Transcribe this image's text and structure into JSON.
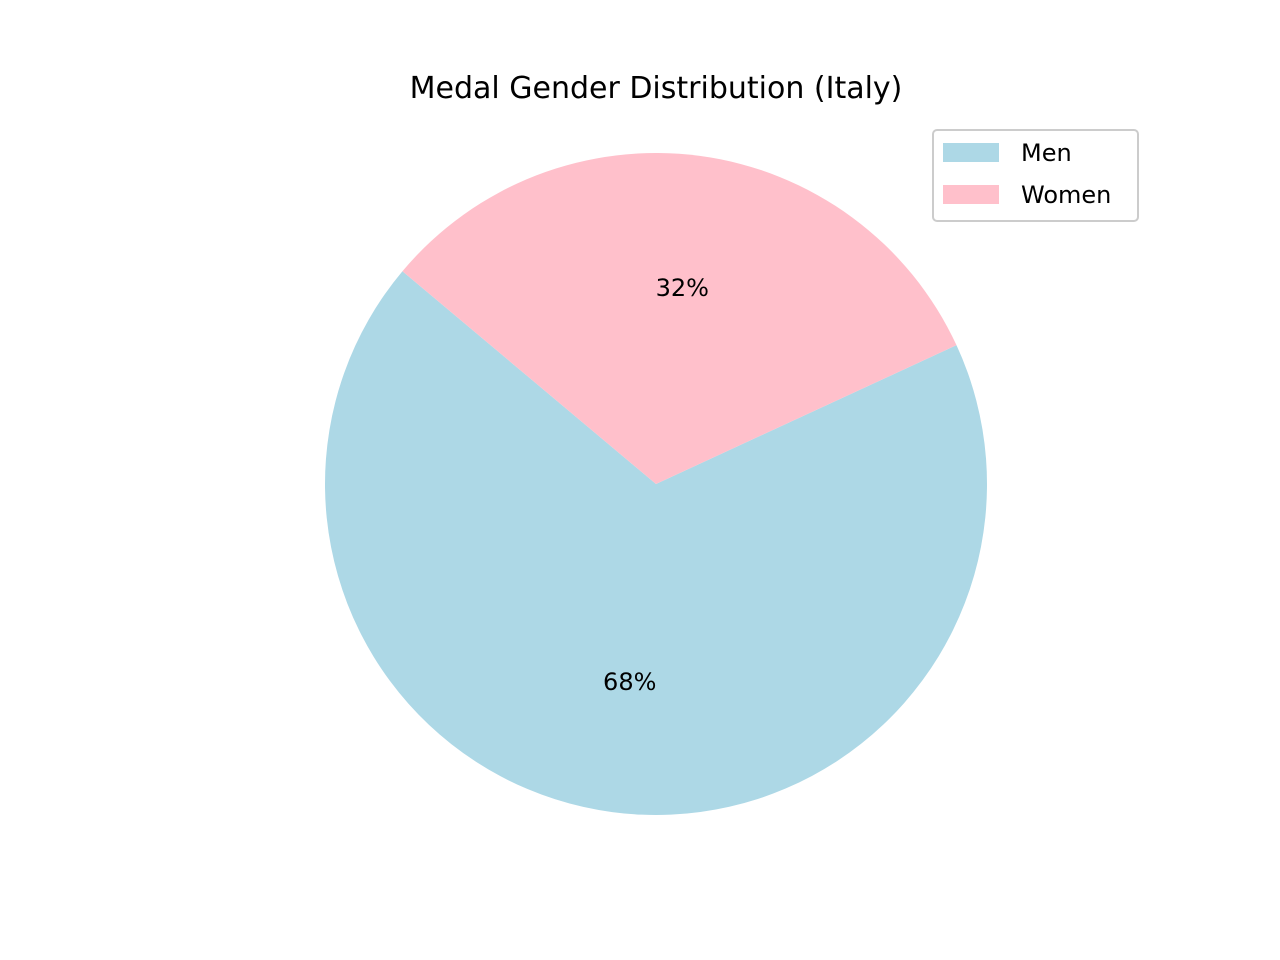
{
  "chart_data": {
    "type": "pie",
    "title": "Medal Gender Distribution (Italy)",
    "labels": [
      "Men",
      "Women"
    ],
    "values": [
      68,
      32
    ],
    "percent_labels": [
      "68%",
      "32%"
    ],
    "colors": [
      "#add8e6",
      "#ffc0cb"
    ],
    "start_angle_deg": 140,
    "legend_placement": "top-right"
  }
}
